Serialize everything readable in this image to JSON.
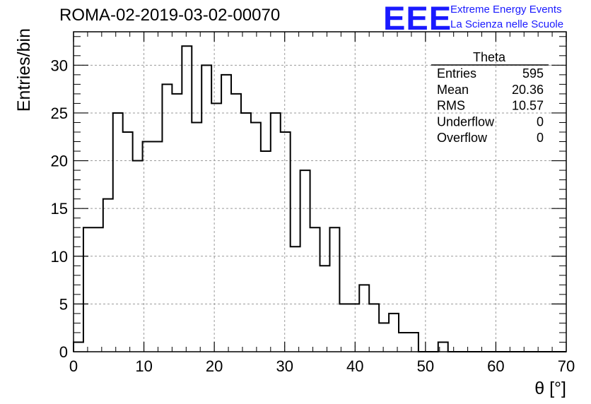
{
  "header": {
    "run_title": "ROMA-02-2019-03-02-00070",
    "logo_mark": "EEE",
    "logo_line1": "Extreme Energy Events",
    "logo_line2": "La Scienza nelle Scuole",
    "logo_color": "#1a1aff"
  },
  "stats_box": {
    "title": "Theta",
    "rows": [
      {
        "label": "Entries",
        "value": "595"
      },
      {
        "label": "Mean",
        "value": "20.36"
      },
      {
        "label": "RMS",
        "value": "10.57"
      },
      {
        "label": "Underflow",
        "value": "0"
      },
      {
        "label": "Overflow",
        "value": "0"
      }
    ]
  },
  "chart_data": {
    "type": "bar",
    "style": "step-histogram",
    "title": "ROMA-02-2019-03-02-00070",
    "xlabel": "θ [°]",
    "ylabel": "Entries/bin",
    "xlim": [
      0,
      70
    ],
    "ylim": [
      0,
      33.5
    ],
    "x_ticks": [
      0,
      10,
      20,
      30,
      40,
      50,
      60,
      70
    ],
    "y_ticks": [
      0,
      5,
      10,
      15,
      20,
      25,
      30
    ],
    "grid": true,
    "bin_width": 1.4,
    "bin_edges_start": 0,
    "values": [
      1,
      13,
      13,
      16,
      25,
      23,
      20,
      22,
      22,
      28,
      27,
      32,
      24,
      30,
      26,
      29,
      27,
      25,
      24,
      21,
      25,
      23,
      11,
      19,
      13,
      9,
      13,
      5,
      5,
      7,
      5,
      3,
      4,
      2,
      2,
      0,
      0,
      1,
      0,
      0,
      0,
      0,
      0,
      0,
      0,
      0,
      0,
      0,
      0,
      0
    ],
    "line_color": "#000000"
  }
}
